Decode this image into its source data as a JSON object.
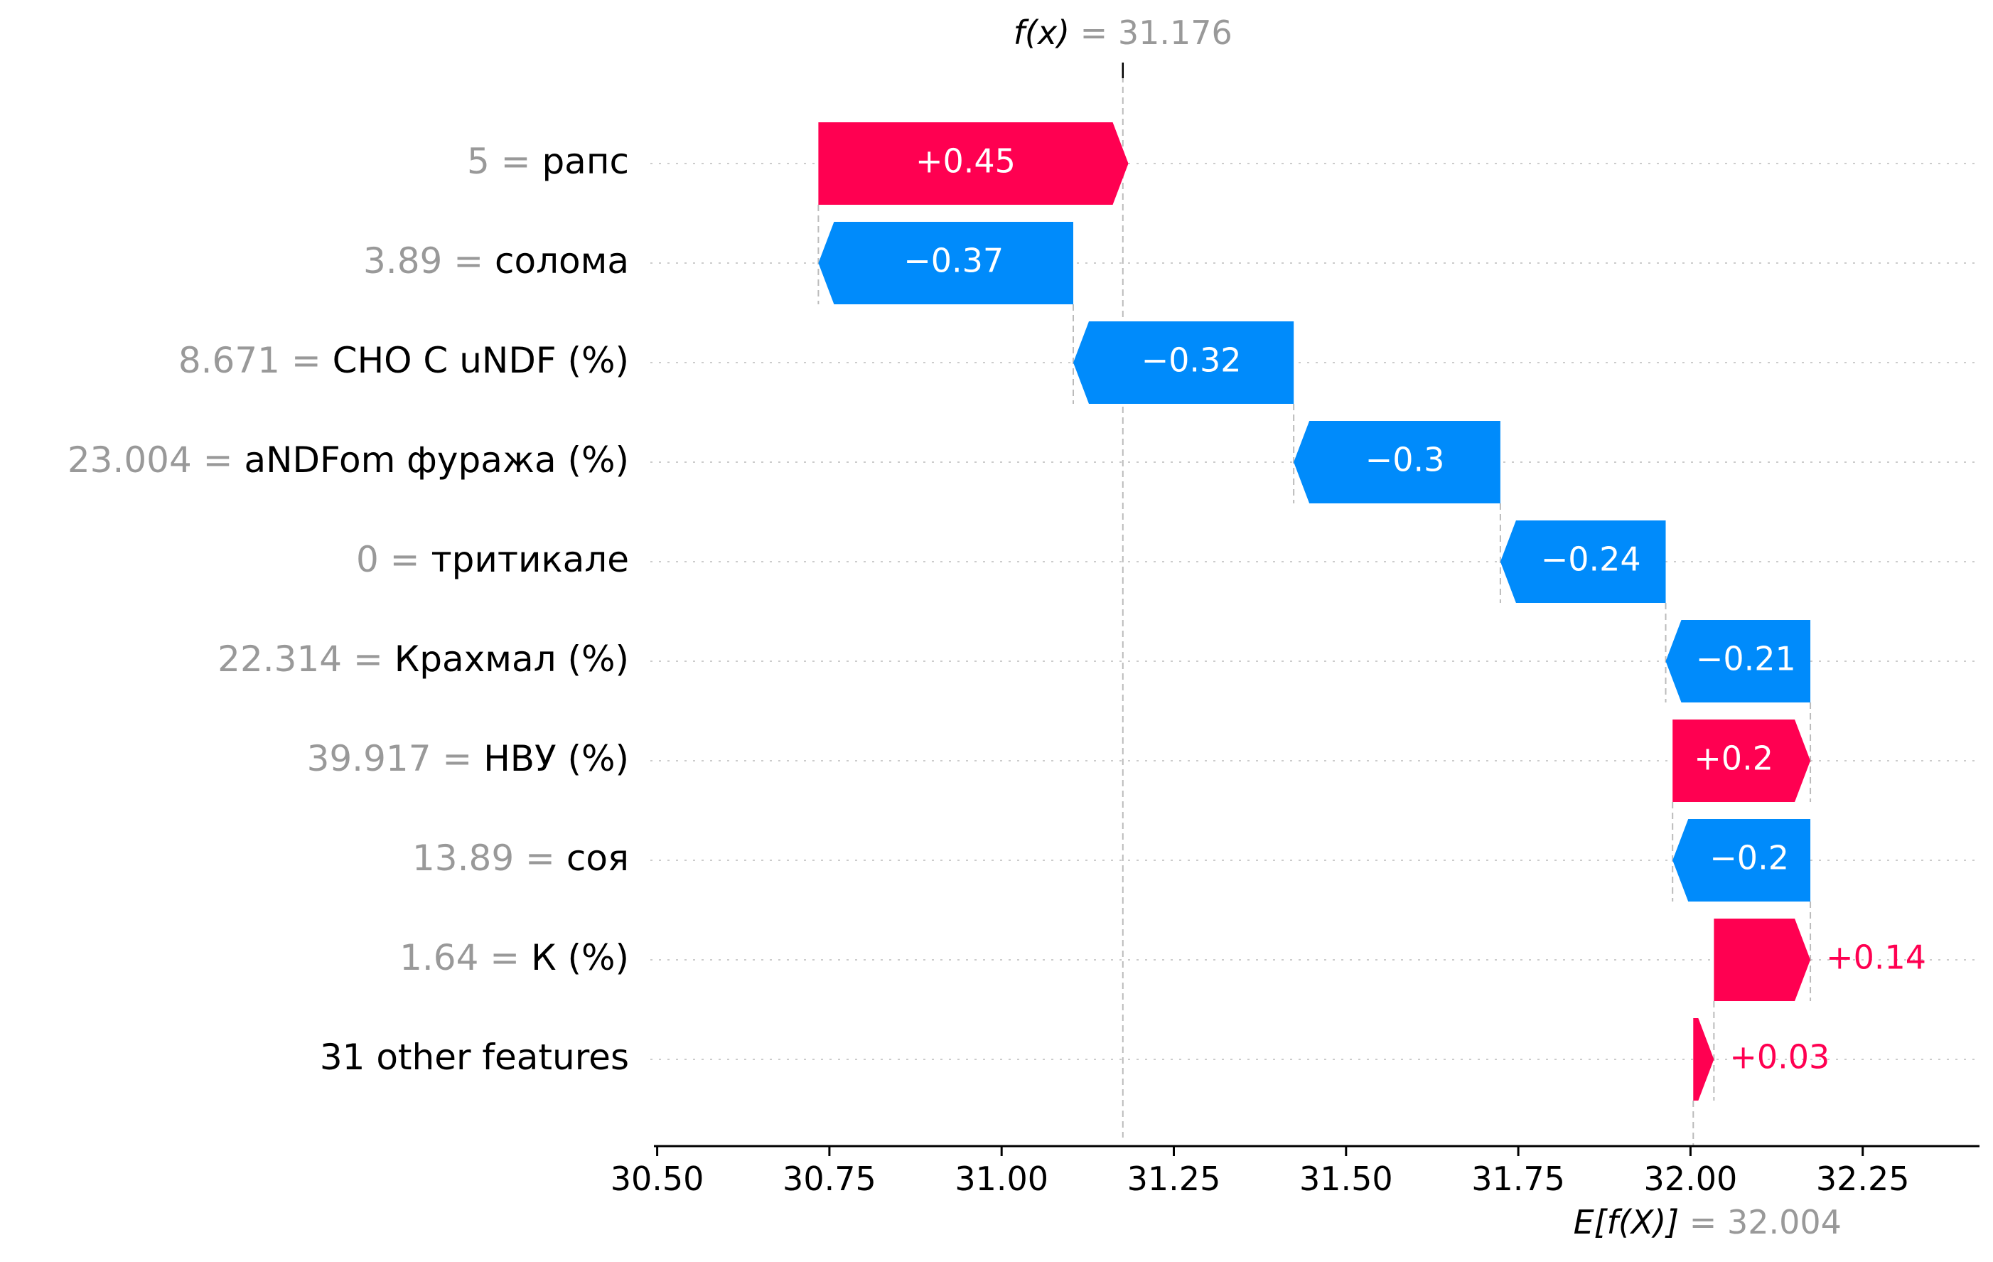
{
  "chart_data": {
    "type": "waterfall",
    "fx": {
      "label": "f(x)",
      "value": "31.176",
      "x": 31.176
    },
    "base": {
      "label": "E[f(X)]",
      "value": "32.004",
      "x": 32.004
    },
    "features": [
      {
        "value": "5",
        "name": "рапс",
        "contribution": 0.45,
        "label": "+0.45"
      },
      {
        "value": "3.89",
        "name": "солома",
        "contribution": -0.37,
        "label": "−0.37"
      },
      {
        "value": "8.671",
        "name": "CHO C uNDF (%)",
        "contribution": -0.32,
        "label": "−0.32"
      },
      {
        "value": "23.004",
        "name": "aNDFom фуража (%)",
        "contribution": -0.3,
        "label": "−0.3"
      },
      {
        "value": "0",
        "name": "тритикале",
        "contribution": -0.24,
        "label": "−0.24"
      },
      {
        "value": "22.314",
        "name": "Крахмал (%)",
        "contribution": -0.21,
        "label": "−0.21"
      },
      {
        "value": "39.917",
        "name": "НВУ (%)",
        "contribution": 0.2,
        "label": "+0.2"
      },
      {
        "value": "13.89",
        "name": "соя",
        "contribution": -0.2,
        "label": "−0.2"
      },
      {
        "value": "1.64",
        "name": "К (%)",
        "contribution": 0.14,
        "label": "+0.14"
      },
      {
        "value": "",
        "name": "31 other features",
        "contribution": 0.03,
        "label": "+0.03"
      }
    ],
    "x_ticks": [
      "30.50",
      "30.75",
      "31.00",
      "31.25",
      "31.50",
      "31.75",
      "32.00",
      "32.25"
    ],
    "x_tick_values": [
      30.5,
      30.75,
      31.0,
      31.25,
      31.5,
      31.75,
      32.0,
      32.25
    ],
    "xlim": [
      30.49,
      32.42
    ],
    "colors": {
      "positive": "#ff0051",
      "negative": "#008bfb",
      "muted": "#999999",
      "axis": "#000000"
    }
  }
}
